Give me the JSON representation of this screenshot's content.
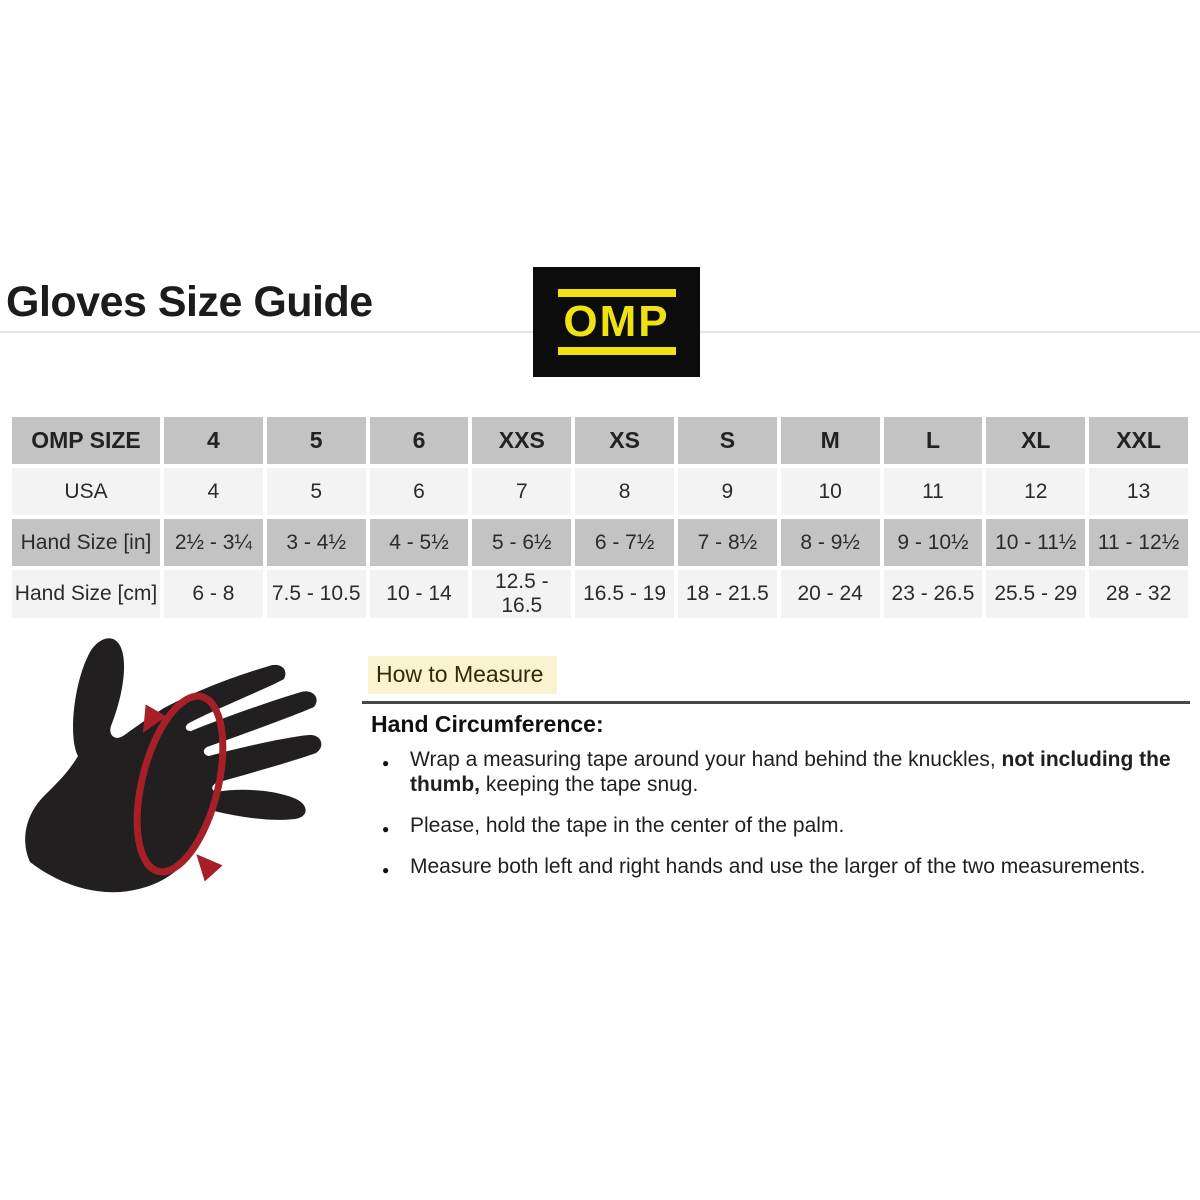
{
  "header": {
    "title": "Gloves Size Guide",
    "logo_text": "OMP"
  },
  "size_table": {
    "rows": [
      {
        "label": "OMP SIZE",
        "variant": "gray",
        "bold": true,
        "values": [
          "4",
          "5",
          "6",
          "XXS",
          "XS",
          "S",
          "M",
          "L",
          "XL",
          "XXL"
        ]
      },
      {
        "label": "USA",
        "variant": "light",
        "bold": false,
        "values": [
          "4",
          "5",
          "6",
          "7",
          "8",
          "9",
          "10",
          "11",
          "12",
          "13"
        ]
      },
      {
        "label": "Hand Size [in]",
        "variant": "gray",
        "bold": false,
        "values": [
          "2½ - 3¼",
          "3 - 4½",
          "4 - 5½",
          "5 - 6½",
          "6 - 7½",
          "7 - 8½",
          "8 - 9½",
          "9 - 10½",
          "10 - 11½",
          "11 - 12½"
        ]
      },
      {
        "label": "Hand Size [cm]",
        "variant": "light",
        "bold": false,
        "values": [
          "6 - 8",
          "7.5 - 10.5",
          "10 - 14",
          "12.5 - 16.5",
          "16.5 - 19",
          "18 - 21.5",
          "20 - 24",
          "23 - 26.5",
          "25.5 - 29",
          "28 - 32"
        ]
      }
    ]
  },
  "measure": {
    "heading": "How to Measure",
    "subheading": "Hand Circumference:",
    "bullets": [
      {
        "pre": "Wrap a measuring tape around your hand behind the knuckles, ",
        "bold": "not including the thumb,",
        "post": " keeping the tape snug."
      },
      {
        "pre": "Please, hold the tape in the center of the palm.",
        "bold": "",
        "post": ""
      },
      {
        "pre": "Measure both left and right hands and use the larger of the two measurements.",
        "bold": "",
        "post": ""
      }
    ]
  },
  "illustration": {
    "name": "hand-circumference-diagram",
    "hand_color": "#211f20",
    "tape_color": "#a82027"
  },
  "colors": {
    "table_header_bg": "#c3c3c3",
    "table_row_bg": "#f3f3f3",
    "logo_bg": "#0c0c0c",
    "logo_yellow": "#f0e212",
    "highlight_bg": "#faf3cf",
    "title_rule": "#e3e3e3",
    "section_rule": "#474747"
  }
}
